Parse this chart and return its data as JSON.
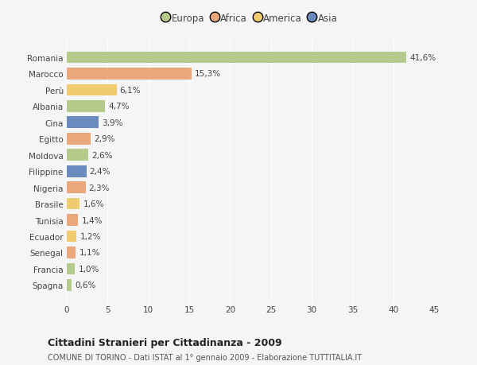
{
  "countries": [
    "Romania",
    "Marocco",
    "Perù",
    "Albania",
    "Cina",
    "Egitto",
    "Moldova",
    "Filippine",
    "Nigeria",
    "Brasile",
    "Tunisia",
    "Ecuador",
    "Senegal",
    "Francia",
    "Spagna"
  ],
  "values": [
    41.6,
    15.3,
    6.1,
    4.7,
    3.9,
    2.9,
    2.6,
    2.4,
    2.3,
    1.6,
    1.4,
    1.2,
    1.1,
    1.0,
    0.6
  ],
  "labels": [
    "41,6%",
    "15,3%",
    "6,1%",
    "4,7%",
    "3,9%",
    "2,9%",
    "2,6%",
    "2,4%",
    "2,3%",
    "1,6%",
    "1,4%",
    "1,2%",
    "1,1%",
    "1,0%",
    "0,6%"
  ],
  "colors": [
    "#b5cb8b",
    "#e8a87c",
    "#f0cc70",
    "#b5cb8b",
    "#6b8bbf",
    "#e8a87c",
    "#b5cb8b",
    "#6b8bbf",
    "#e8a87c",
    "#f0cc70",
    "#e8a87c",
    "#f0cc70",
    "#e8a87c",
    "#b5cb8b",
    "#b5cb8b"
  ],
  "legend_labels": [
    "Europa",
    "Africa",
    "America",
    "Asia"
  ],
  "legend_colors": [
    "#b5cb8b",
    "#e8a87c",
    "#f0cc70",
    "#6b8bbf"
  ],
  "xlim": [
    0,
    45
  ],
  "xticks": [
    0,
    5,
    10,
    15,
    20,
    25,
    30,
    35,
    40,
    45
  ],
  "title": "Cittadini Stranieri per Cittadinanza - 2009",
  "subtitle": "COMUNE DI TORINO - Dati ISTAT al 1° gennaio 2009 - Elaborazione TUTTITALIA.IT",
  "background_color": "#f5f5f5",
  "bar_height": 0.72,
  "label_fontsize": 7.5,
  "tick_fontsize": 7.5,
  "grid_color": "#ffffff",
  "text_color": "#444444"
}
